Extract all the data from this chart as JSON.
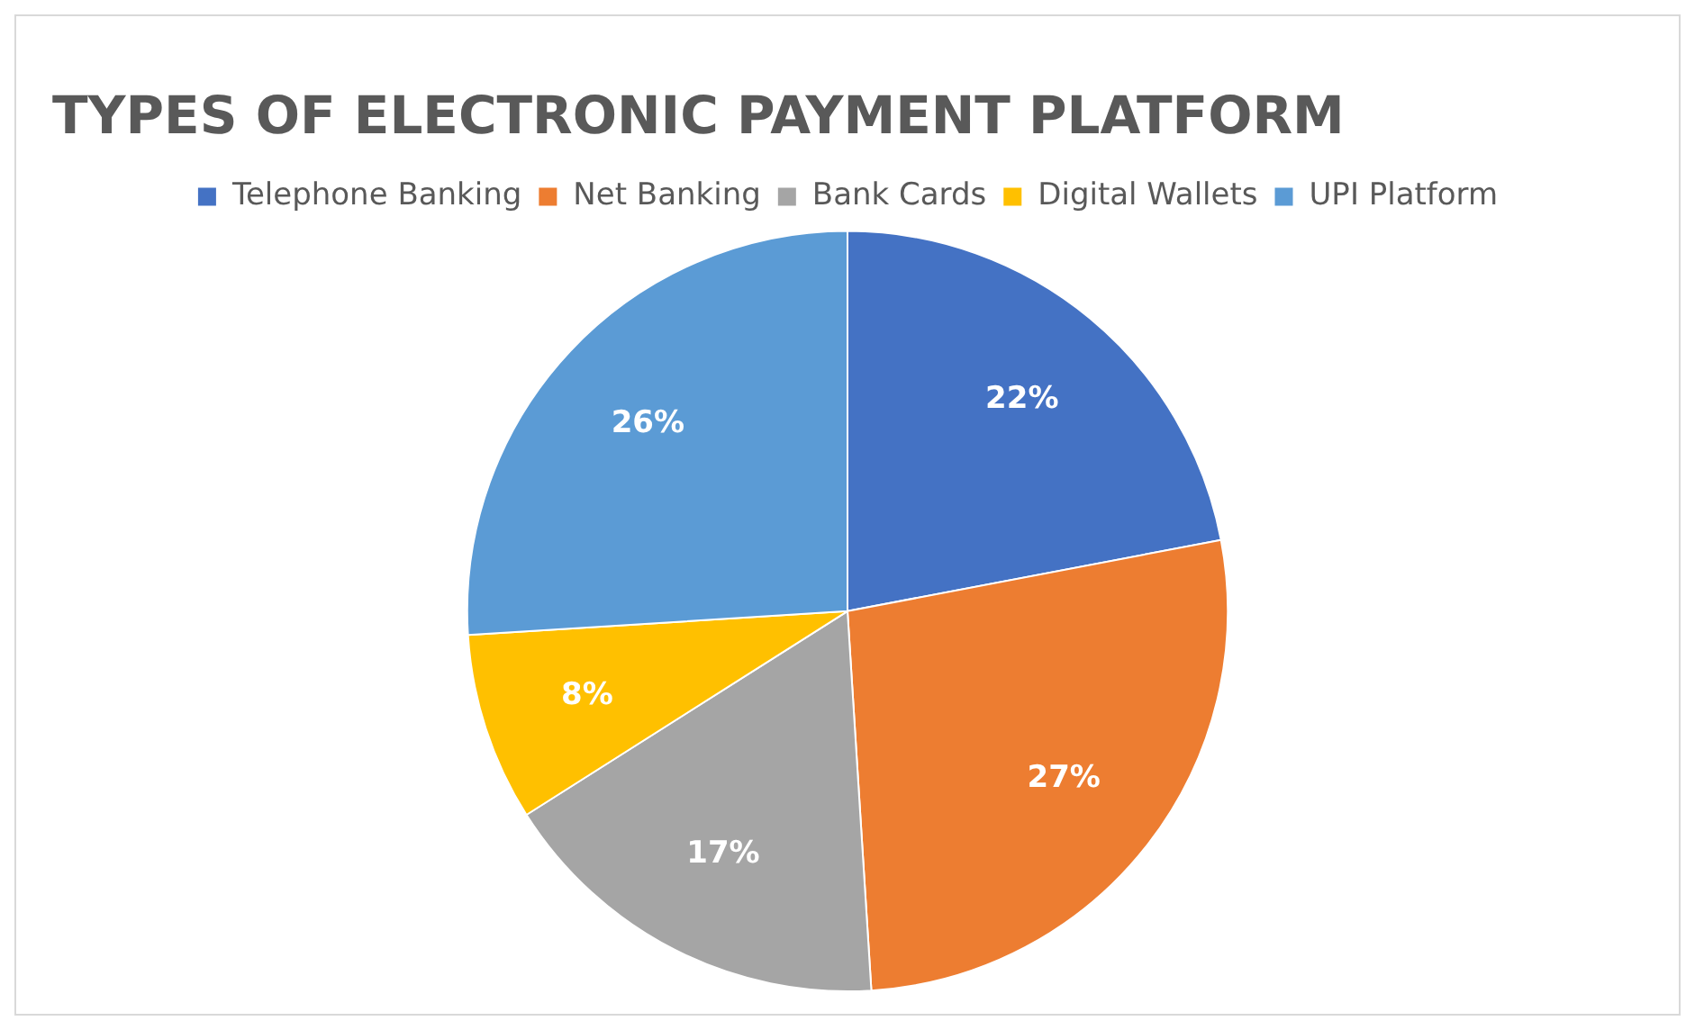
{
  "chart_data": {
    "type": "pie",
    "title": "TYPES OF ELECTRONIC PAYMENT PLATFORM",
    "categories": [
      "Telephone Banking",
      "Net Banking",
      "Bank Cards",
      "Digital Wallets",
      "UPI Platform"
    ],
    "values": [
      22,
      27,
      17,
      8,
      26
    ],
    "colors": [
      "#4472c4",
      "#ed7d31",
      "#a5a5a5",
      "#ffc000",
      "#5b9bd5"
    ],
    "value_labels": [
      "22%",
      "27%",
      "17%",
      "8%",
      "26%"
    ],
    "legend": "top"
  }
}
